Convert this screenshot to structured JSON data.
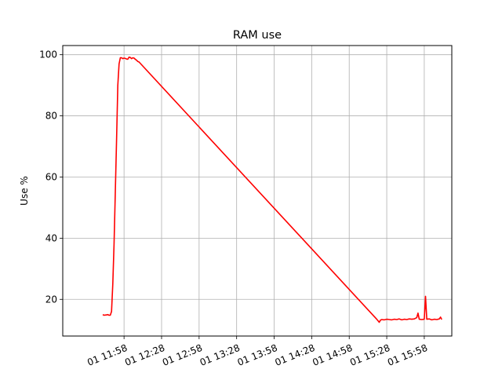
{
  "chart_data": {
    "type": "line",
    "title": "RAM use",
    "xlabel": "",
    "ylabel": "Use %",
    "x_tick_labels": [
      "01 11:58",
      "01 12:28",
      "01 12:58",
      "01 13:28",
      "01 13:58",
      "01 14:28",
      "01 14:58",
      "01 15:28",
      "01 15:58"
    ],
    "y_ticks": [
      20,
      40,
      60,
      80,
      100
    ],
    "x_tick_minutes": [
      718,
      748,
      778,
      808,
      838,
      868,
      898,
      928,
      958
    ],
    "xlim_minutes": [
      669,
      980
    ],
    "ylim": [
      8,
      103
    ],
    "grid": true,
    "series": [
      {
        "color": "#ff0000",
        "x_minutes": [
          701,
          702,
          704,
          705,
          706,
          707,
          708,
          709,
          710,
          711,
          712,
          713,
          714,
          715,
          716,
          717,
          718,
          719,
          720,
          721,
          722,
          723,
          724,
          725,
          726,
          727,
          728,
          729,
          730,
          920,
          921,
          922,
          923,
          924,
          926,
          928,
          930,
          932,
          934,
          936,
          938,
          940,
          942,
          944,
          946,
          948,
          950,
          952,
          953,
          954,
          956,
          958,
          959,
          960,
          962,
          964,
          966,
          968,
          970,
          971,
          972
        ],
        "values": [
          15,
          14.8,
          14.9,
          15,
          14.8,
          14.8,
          16,
          25,
          38,
          55,
          72,
          90,
          97,
          99,
          99,
          98.7,
          98.9,
          98.8,
          98.6,
          98.5,
          99.2,
          99.1,
          98.7,
          99,
          98.9,
          98.5,
          98.2,
          97.8,
          97.6,
          13.5,
          13.0,
          12.5,
          13.2,
          13.4,
          13.3,
          13.5,
          13.4,
          13.3,
          13.5,
          13.4,
          13.6,
          13.3,
          13.5,
          13.4,
          13.6,
          13.5,
          13.6,
          14,
          15.5,
          13.5,
          13.4,
          13.5,
          21,
          13.5,
          13.6,
          13.3,
          13.5,
          13.4,
          13.6,
          14.2,
          13.4
        ]
      }
    ]
  }
}
